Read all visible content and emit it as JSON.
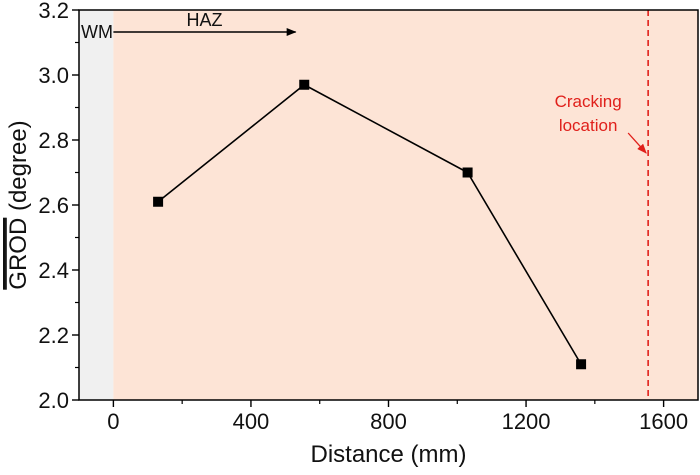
{
  "chart_data": {
    "type": "line",
    "title": "",
    "xlabel": "Distance (mm)",
    "ylabel_overline": "GROD",
    "ylabel_rest": " (degree)",
    "xlim": [
      -100,
      1700
    ],
    "ylim": [
      2.0,
      3.2
    ],
    "x_ticks": [
      0,
      400,
      800,
      1200,
      1600
    ],
    "x_tick_labels": [
      "0",
      "400",
      "800",
      "1200",
      "1600"
    ],
    "y_ticks": [
      2.0,
      2.2,
      2.4,
      2.6,
      2.8,
      3.0,
      3.2
    ],
    "y_tick_labels": [
      "2.0",
      "2.2",
      "2.4",
      "2.6",
      "2.8",
      "3.0",
      "3.2"
    ],
    "series": [
      {
        "x": [
          130,
          555,
          1030,
          1360
        ],
        "y": [
          2.61,
          2.97,
          2.7,
          2.11
        ],
        "marker": "square",
        "color": "#000000"
      }
    ],
    "regions": [
      {
        "label": "WM",
        "x_start": -100,
        "x_end": 0,
        "color": "#f0f0f0"
      },
      {
        "label": "HAZ",
        "x_start": 0,
        "x_end": 1700,
        "color": "#fde4d6"
      }
    ],
    "haz_arrow": {
      "x_start": 0,
      "x_end": 530,
      "y": 3.18
    },
    "cracking": {
      "line1": "Cracking",
      "line2": "location",
      "x": 1555,
      "color": "#e0201b"
    },
    "grid": false,
    "legend": "none"
  }
}
